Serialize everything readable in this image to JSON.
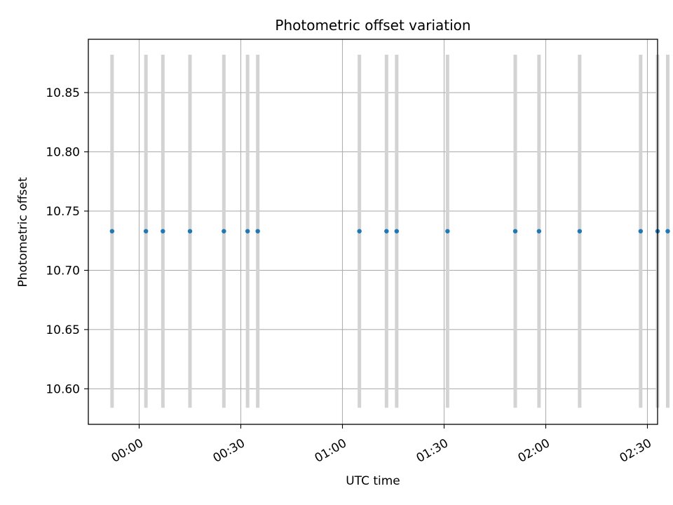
{
  "chart_data": {
    "type": "scatter",
    "title": "Photometric offset variation",
    "xlabel": "UTC time",
    "ylabel": "Photometric offset",
    "x_ticks": [
      "00:00",
      "00:30",
      "01:00",
      "01:30",
      "02:00",
      "02:30"
    ],
    "y_ticks": [
      "10.60",
      "10.65",
      "10.70",
      "10.75",
      "10.80",
      "10.85"
    ],
    "xlim": [
      "23:45",
      "02:33"
    ],
    "ylim": [
      10.57,
      10.895
    ],
    "grid": true,
    "x": [
      "23:52",
      "00:02",
      "00:07",
      "00:15",
      "00:25",
      "00:32",
      "00:35",
      "01:05",
      "01:13",
      "01:16",
      "01:31",
      "01:51",
      "01:58",
      "02:10",
      "02:28",
      "02:33",
      "02:36"
    ],
    "y": [
      10.733,
      10.733,
      10.733,
      10.733,
      10.733,
      10.733,
      10.733,
      10.733,
      10.733,
      10.733,
      10.733,
      10.733,
      10.733,
      10.733,
      10.733,
      10.733,
      10.733
    ],
    "marker_color": "#1f77b4",
    "band_color": "#d3d3d3",
    "band_range": [
      10.584,
      10.882
    ]
  }
}
